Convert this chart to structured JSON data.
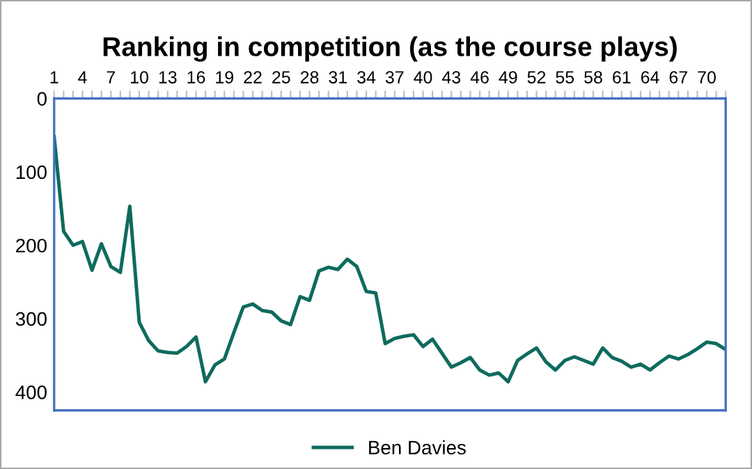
{
  "chart_data": {
    "type": "line",
    "title": "Ranking in competition (as the course plays)",
    "categories": [
      "1",
      null,
      null,
      "4",
      null,
      null,
      "7",
      null,
      null,
      "10",
      null,
      null,
      "13",
      null,
      null,
      "16",
      null,
      null,
      "19",
      null,
      null,
      "22",
      null,
      null,
      "25",
      null,
      null,
      "28",
      null,
      null,
      "31",
      null,
      null,
      "34",
      null,
      null,
      "37",
      null,
      null,
      "40",
      null,
      null,
      "43",
      null,
      null,
      "46",
      null,
      null,
      "49",
      null,
      null,
      "52",
      null,
      null,
      "55",
      null,
      null,
      "58",
      null,
      null,
      "61",
      null,
      null,
      "64",
      null,
      null,
      "67",
      null,
      null,
      "70",
      null,
      null
    ],
    "series": [
      {
        "name": "Ben Davies",
        "color": "#0e6b5e",
        "values": [
          52,
          181,
          200,
          195,
          234,
          198,
          229,
          237,
          147,
          305,
          330,
          344,
          346,
          347,
          338,
          325,
          386,
          363,
          355,
          319,
          284,
          280,
          289,
          291,
          303,
          308,
          270,
          275,
          235,
          230,
          233,
          219,
          229,
          263,
          265,
          334,
          327,
          324,
          322,
          338,
          328,
          347,
          366,
          360,
          353,
          370,
          377,
          374,
          386,
          357,
          348,
          340,
          359,
          370,
          357,
          352,
          357,
          362,
          340,
          353,
          358,
          366,
          362,
          370,
          360,
          351,
          355,
          349,
          341,
          332,
          334,
          342
        ]
      }
    ],
    "ylim": [
      425,
      0
    ],
    "yticks": [
      0,
      100,
      200,
      300,
      400
    ],
    "grid": false,
    "legend": "bottom",
    "marker": "none",
    "line_style": "solid"
  }
}
